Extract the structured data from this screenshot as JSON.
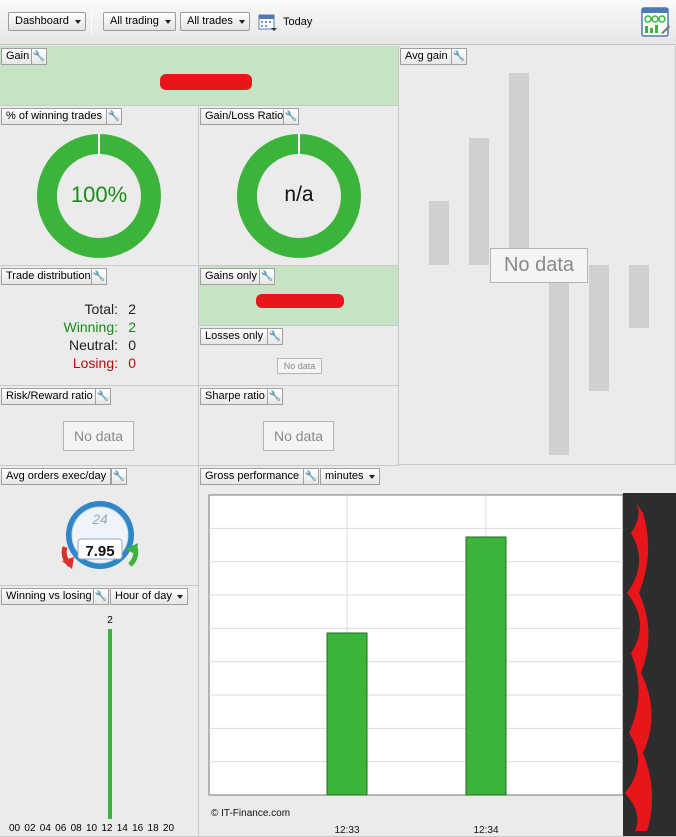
{
  "toolbar": {
    "dashboard": "Dashboard",
    "trading_filter": "All trading",
    "trades_filter": "All trades",
    "date": "Today"
  },
  "gain": {
    "title": "Gain"
  },
  "avg_gain": {
    "title": "Avg gain",
    "no_data": "No data"
  },
  "winning_trades": {
    "title": "% of winning trades",
    "value": "100%",
    "percent": 100
  },
  "gain_loss": {
    "title": "Gain/Loss Ratio",
    "value": "n/a"
  },
  "trade_distribution": {
    "title": "Trade distribution",
    "rows": [
      {
        "label": "Total:",
        "value": "2",
        "color": "#222222"
      },
      {
        "label": "Winning:",
        "value": "2",
        "color": "#1a8a1a"
      },
      {
        "label": "Neutral:",
        "value": "0",
        "color": "#222222"
      },
      {
        "label": "Losing:",
        "value": "0",
        "color": "#b01010"
      }
    ]
  },
  "gains_only": {
    "title": "Gains only"
  },
  "losses_only": {
    "title": "Losses only",
    "no_data": "No data"
  },
  "risk_reward": {
    "title": "Risk/Reward ratio",
    "no_data": "No data"
  },
  "sharpe": {
    "title": "Sharpe ratio",
    "no_data": "No data"
  },
  "avg_orders": {
    "title": "Avg orders exec/day",
    "hours": "24",
    "value": "7.95"
  },
  "winning_vs_losing": {
    "title": "Winning vs losing",
    "mode": "Hour of day",
    "bar_label": "2",
    "hours": [
      "00",
      "02",
      "04",
      "06",
      "08",
      "10",
      "12",
      "14",
      "16",
      "18",
      "20"
    ]
  },
  "gross_performance": {
    "title": "Gross performance",
    "unit": "minutes",
    "credit": "© IT-Finance.com"
  },
  "chart_data": {
    "type": "bar",
    "categories": [
      "12:33",
      "12:34"
    ],
    "values": [
      0.54,
      0.86
    ],
    "ylim": [
      0,
      1
    ],
    "grid": true,
    "color": "#3cb43c"
  },
  "colors": {
    "accent_green": "#3cb43c",
    "panel_green": "#c6e3c5"
  }
}
